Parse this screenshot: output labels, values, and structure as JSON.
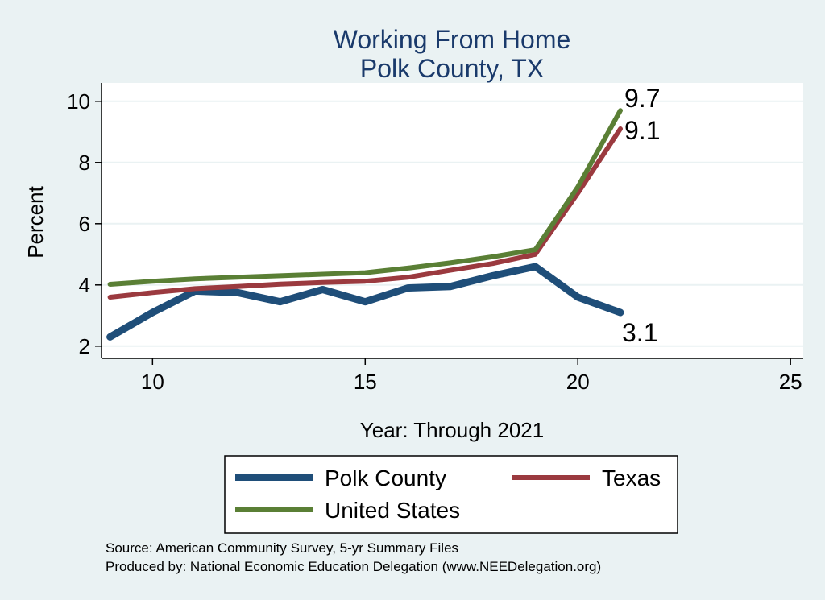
{
  "chart_data": {
    "type": "line",
    "title": [
      "Working From Home",
      "Polk County, TX"
    ],
    "xlabel": "Year: Through 2021",
    "ylabel": "Percent",
    "xlim": [
      8.8,
      25.3
    ],
    "ylim": [
      1.6,
      10.6
    ],
    "xticks": [
      10,
      15,
      20,
      25
    ],
    "yticks": [
      2,
      4,
      6,
      8,
      10
    ],
    "grid": true,
    "legend_position": "bottom",
    "series": [
      {
        "name": "Polk County",
        "color": "#1f4e79",
        "x": [
          9,
          10,
          11,
          12,
          13,
          14,
          15,
          16,
          17,
          18,
          19,
          20,
          21
        ],
        "y": [
          2.3,
          3.1,
          3.8,
          3.75,
          3.45,
          3.85,
          3.45,
          3.9,
          3.95,
          4.3,
          4.6,
          3.6,
          3.1
        ],
        "end_label": "3.1"
      },
      {
        "name": "Texas",
        "color": "#9b3a3f",
        "x": [
          9,
          10,
          11,
          12,
          13,
          14,
          15,
          16,
          17,
          18,
          19,
          20,
          21
        ],
        "y": [
          3.6,
          3.75,
          3.88,
          3.95,
          4.03,
          4.08,
          4.12,
          4.25,
          4.48,
          4.7,
          5.0,
          7.0,
          9.1
        ],
        "end_label": "9.1"
      },
      {
        "name": "United States",
        "color": "#5a7f35",
        "x": [
          9,
          10,
          11,
          12,
          13,
          14,
          15,
          16,
          17,
          18,
          19,
          20,
          21
        ],
        "y": [
          4.02,
          4.12,
          4.2,
          4.25,
          4.3,
          4.35,
          4.4,
          4.55,
          4.72,
          4.92,
          5.15,
          7.2,
          9.7
        ],
        "end_label": "9.7"
      }
    ],
    "notes": [
      "Source: American Community Survey, 5-yr Summary Files",
      "Produced by: National Economic Education Delegation (www.NEEDelegation.org)"
    ]
  },
  "colors": {
    "outer_bg": "#eaf2f3",
    "plot_bg": "#ffffff",
    "grid": "#eaf2f3",
    "title": "#1a3a6b"
  }
}
